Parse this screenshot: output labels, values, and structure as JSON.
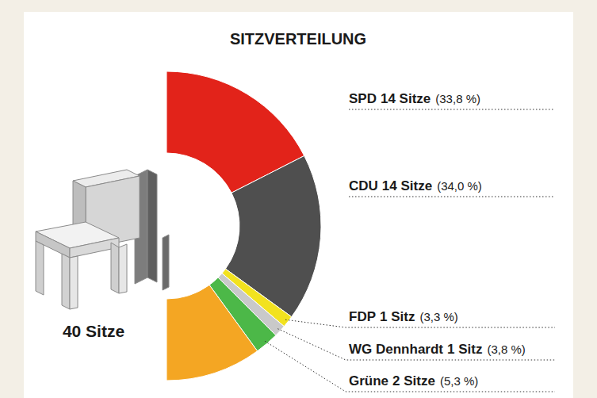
{
  "chart_data": {
    "type": "pie",
    "title": "SITZVERTEILUNG",
    "categories": [
      "SPD",
      "CDU",
      "FDP",
      "WG Dennhardt",
      "Grüne",
      null
    ],
    "values": [
      14,
      14,
      1,
      1,
      2,
      8
    ],
    "value_labels": [
      "14 Sitze",
      "14 Sitze",
      "1 Sitz",
      "1 Sitz",
      "2 Sitze",
      null
    ],
    "vote_shares": [
      33.8,
      34.0,
      3.3,
      3.8,
      5.3,
      null
    ],
    "vote_share_labels": [
      "(33,8 %)",
      "(34,0 %)",
      "(3,3 %)",
      "(3,8 %)",
      "(5,3 %)",
      null
    ],
    "colors": [
      "#e2231a",
      "#4f4f4f",
      "#f2e21f",
      "#c9c9c9",
      "#4cb848",
      "#f4a623"
    ],
    "total": 40,
    "total_label": "40 Sitze",
    "data_labels": true
  }
}
